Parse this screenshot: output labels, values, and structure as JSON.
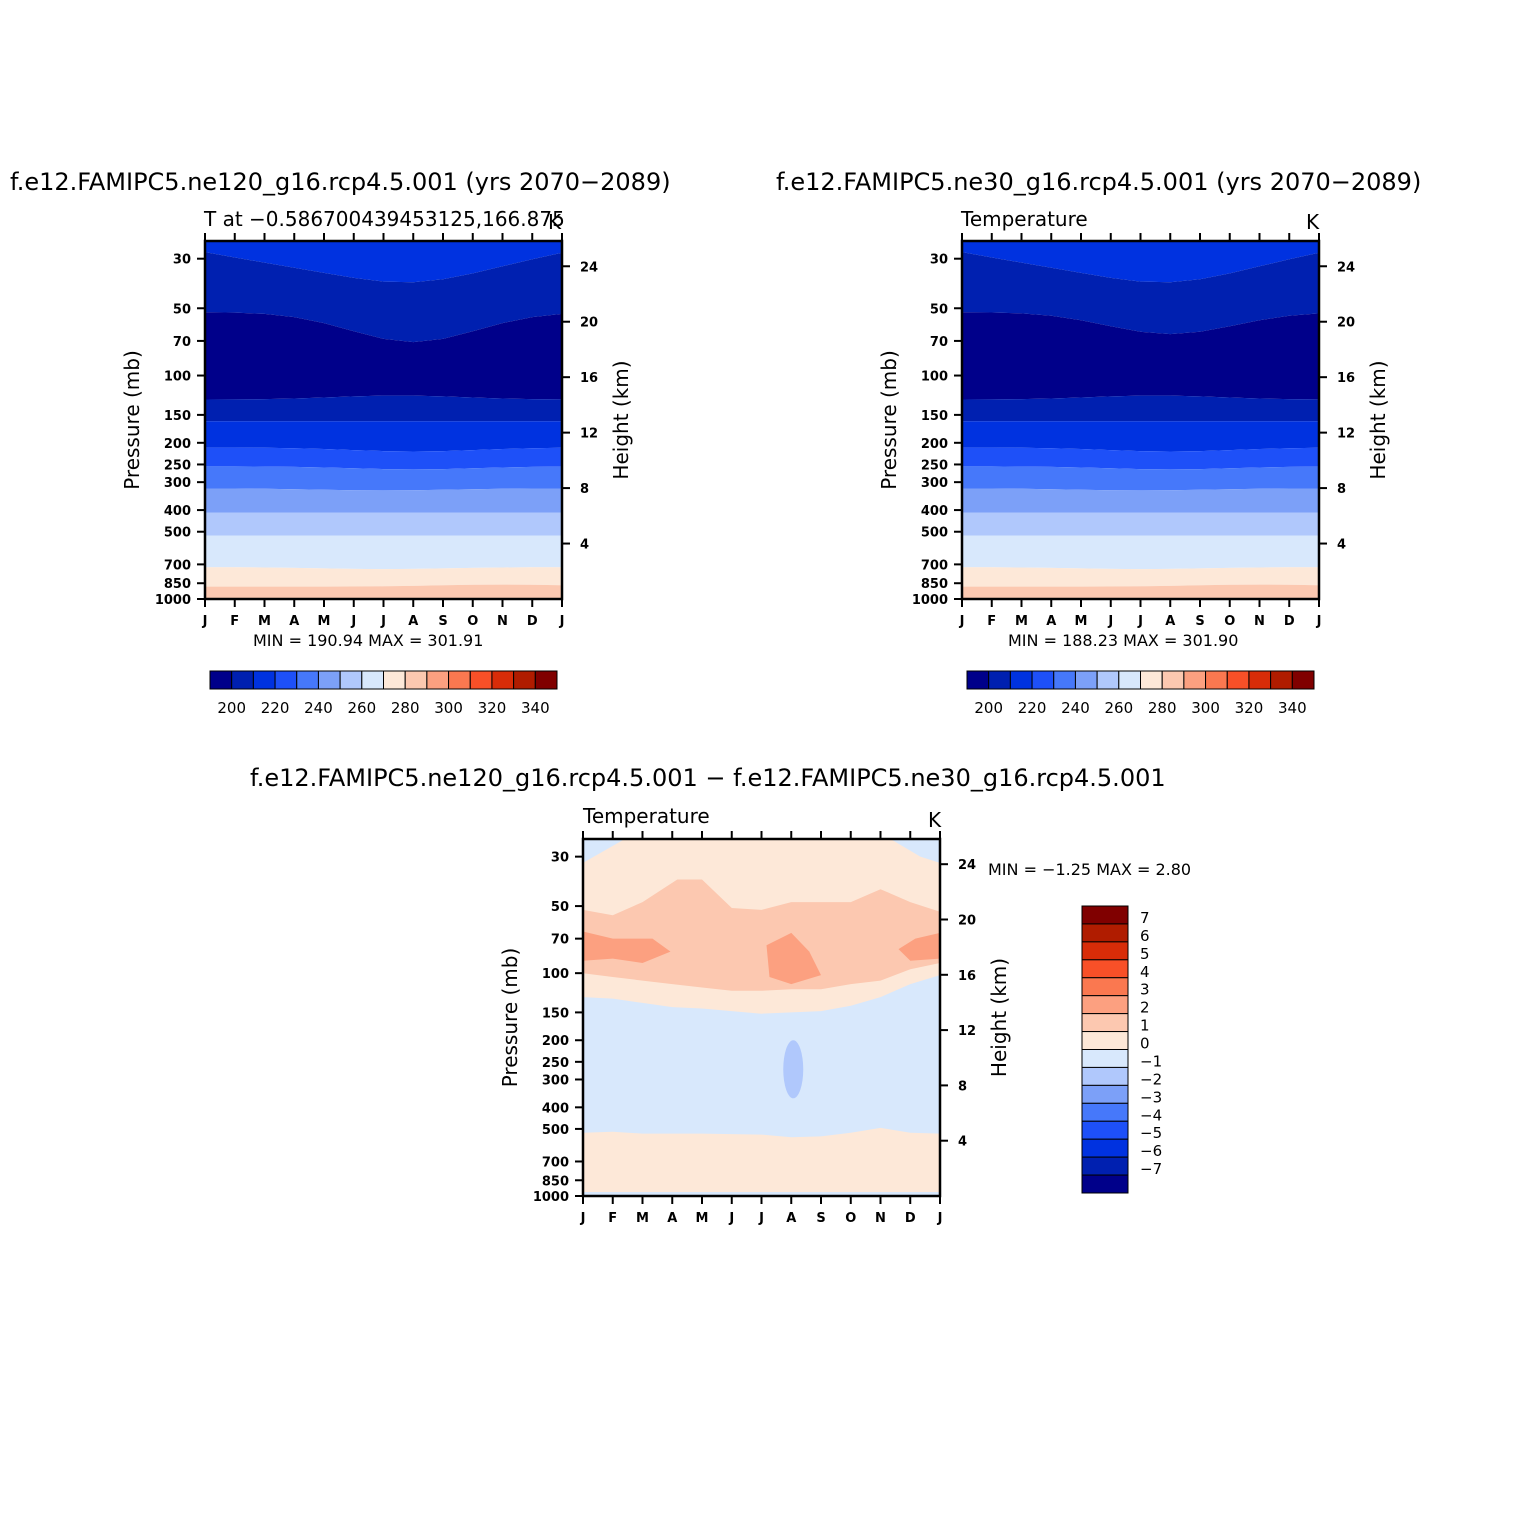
{
  "colors": {
    "temp_palette": [
      "#00008a",
      "#0020b0",
      "#0032e0",
      "#1e50f8",
      "#4678fa",
      "#7ca0f8",
      "#b0c8fc",
      "#d8e8fc",
      "#fde8d8",
      "#fcc8b0",
      "#fca080",
      "#fa7850",
      "#f85028",
      "#d82c08",
      "#b01c00",
      "#800000"
    ],
    "diff_palette": [
      "#00008a",
      "#0020b0",
      "#0032e0",
      "#1e50f8",
      "#4678fa",
      "#7ca0f8",
      "#b0c8fc",
      "#d8e8fc",
      "#fde8d8",
      "#fcc8b0",
      "#fca080",
      "#fa7850",
      "#f85028",
      "#d82c08",
      "#b01c00",
      "#800000"
    ]
  },
  "panels": {
    "p1": {
      "title": "f.e12.FAMIPC5.ne120_g16.rcp4.5.001 (yrs 2070−2089)",
      "left_label": "T at −0.586700439453125,166.875",
      "unit": "K",
      "ylabel": "Pressure (mb)",
      "y2label": "Height (km)",
      "minmax": "MIN = 190.94 MAX = 301.91"
    },
    "p2": {
      "title": "f.e12.FAMIPC5.ne30_g16.rcp4.5.001 (yrs 2070−2089)",
      "left_label": "Temperature",
      "unit": "K",
      "ylabel": "Pressure (mb)",
      "y2label": "Height (km)",
      "minmax": "MIN = 188.23 MAX = 301.90"
    },
    "p3": {
      "title": "f.e12.FAMIPC5.ne120_g16.rcp4.5.001 − f.e12.FAMIPC5.ne30_g16.rcp4.5.001",
      "left_label": "Temperature",
      "unit": "K",
      "ylabel": "Pressure (mb)",
      "y2label": "Height (km)",
      "minmax": "MIN = −1.25 MAX = 2.80"
    }
  },
  "chart_data": [
    {
      "type": "heatmap",
      "title": "f.e12.FAMIPC5.ne120_g16.rcp4.5.001 (yrs 2070−2089)",
      "x_ticks": [
        "J",
        "F",
        "M",
        "A",
        "M",
        "J",
        "J",
        "A",
        "S",
        "O",
        "N",
        "D",
        "J"
      ],
      "y_ticks": [
        30,
        50,
        70,
        100,
        150,
        200,
        250,
        300,
        400,
        500,
        700,
        850,
        1000
      ],
      "y2_ticks": [
        24,
        20,
        16,
        12,
        8,
        4
      ],
      "ylim": [
        1000,
        25
      ],
      "y_scale": "log",
      "colorbar_labels": [
        200,
        220,
        240,
        260,
        280,
        300,
        320,
        340
      ],
      "contour_levels": [
        195,
        205,
        215,
        225,
        235,
        245,
        255,
        265,
        275,
        285,
        295
      ],
      "min": 190.94,
      "max": 301.91
    },
    {
      "type": "heatmap",
      "title": "f.e12.FAMIPC5.ne30_g16.rcp4.5.001 (yrs 2070−2089)",
      "x_ticks": [
        "J",
        "F",
        "M",
        "A",
        "M",
        "J",
        "J",
        "A",
        "S",
        "O",
        "N",
        "D",
        "J"
      ],
      "y_ticks": [
        30,
        50,
        70,
        100,
        150,
        200,
        250,
        300,
        400,
        500,
        700,
        850,
        1000
      ],
      "y2_ticks": [
        24,
        20,
        16,
        12,
        8,
        4
      ],
      "ylim": [
        1000,
        25
      ],
      "y_scale": "log",
      "colorbar_labels": [
        200,
        220,
        240,
        260,
        280,
        300,
        320,
        340
      ],
      "contour_levels": [
        195,
        205,
        215,
        225,
        235,
        245,
        255,
        265,
        275,
        285,
        295
      ],
      "min": 188.23,
      "max": 301.9
    },
    {
      "type": "heatmap",
      "title": "f.e12.FAMIPC5.ne120_g16.rcp4.5.001 − f.e12.FAMIPC5.ne30_g16.rcp4.5.001",
      "x_ticks": [
        "J",
        "F",
        "M",
        "A",
        "M",
        "J",
        "J",
        "A",
        "S",
        "O",
        "N",
        "D",
        "J"
      ],
      "y_ticks": [
        30,
        50,
        70,
        100,
        150,
        200,
        250,
        300,
        400,
        500,
        700,
        850,
        1000
      ],
      "y2_ticks": [
        24,
        20,
        16,
        12,
        8,
        4
      ],
      "ylim": [
        1000,
        25
      ],
      "y_scale": "log",
      "colorbar_labels": [
        7,
        6,
        5,
        4,
        3,
        2,
        1,
        0,
        -1,
        -2,
        -3,
        -4,
        -5,
        -6,
        -7
      ],
      "colorbar_label_text": [
        "7",
        "6",
        "5",
        "4",
        "3",
        "2",
        "1",
        "0",
        "−1",
        "−2",
        "−3",
        "−4",
        "−5",
        "−6",
        "−7"
      ],
      "min": -1.25,
      "max": 2.8
    }
  ]
}
